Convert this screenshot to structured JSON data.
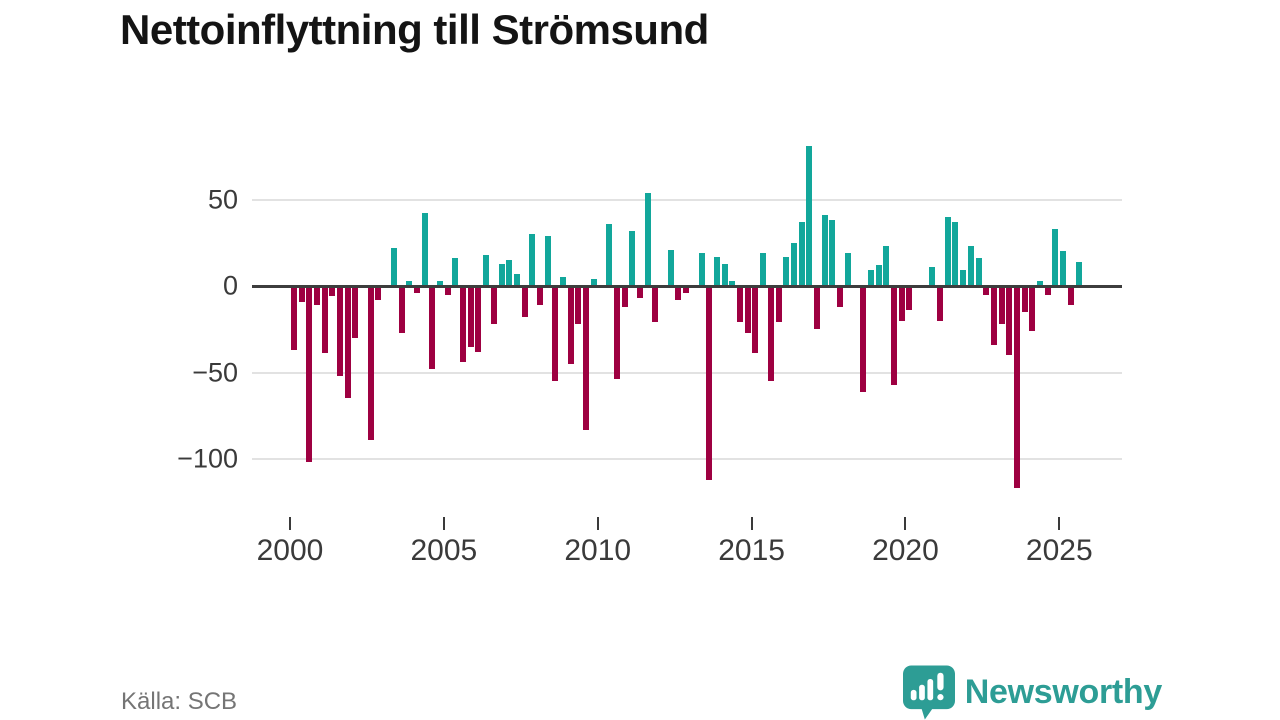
{
  "title": "Nettoinflyttning till Strömsund",
  "source": "Källa: SCB",
  "logo": {
    "text": "Newsworthy",
    "mark": "speech-bubble-bar-chart-icon",
    "color": "#2d9d95"
  },
  "chart_data": {
    "type": "bar",
    "title": "Nettoinflyttning till Strömsund",
    "xlabel": "",
    "ylabel": "",
    "frequency": "quarterly",
    "x_range": "2000Q1-2025Q3",
    "ylim": [
      -125,
      90
    ],
    "grid": true,
    "y_ticks": [
      50,
      0,
      -50,
      -100
    ],
    "y_tick_labels": [
      "50",
      "0",
      "−50",
      "−100"
    ],
    "x_tick_labels": [
      "2000",
      "2005",
      "2010",
      "2015",
      "2020",
      "2025"
    ],
    "colors": {
      "positive": "#12a79b",
      "negative": "#9e0041",
      "zero_line": "#3d3d3d",
      "gridline": "#e2e2e2"
    },
    "years": [
      {
        "year": 2000,
        "values": [
          -37,
          -9,
          -102,
          -11
        ]
      },
      {
        "year": 2001,
        "values": [
          -39,
          -6,
          -52,
          -65
        ]
      },
      {
        "year": 2002,
        "values": [
          -30,
          0,
          -89,
          -8
        ]
      },
      {
        "year": 2003,
        "values": [
          0,
          22,
          -27,
          3
        ]
      },
      {
        "year": 2004,
        "values": [
          -4,
          42,
          -48,
          3
        ]
      },
      {
        "year": 2005,
        "values": [
          -5,
          16,
          -44,
          -35
        ]
      },
      {
        "year": 2006,
        "values": [
          -38,
          18,
          -22,
          13
        ]
      },
      {
        "year": 2007,
        "values": [
          15,
          7,
          -18,
          30
        ]
      },
      {
        "year": 2008,
        "values": [
          -11,
          29,
          -55,
          5
        ]
      },
      {
        "year": 2009,
        "values": [
          -45,
          -22,
          -83,
          4
        ]
      },
      {
        "year": 2010,
        "values": [
          0,
          36,
          -54,
          -12
        ]
      },
      {
        "year": 2011,
        "values": [
          32,
          -7,
          54,
          -21
        ]
      },
      {
        "year": 2012,
        "values": [
          0,
          21,
          -8,
          -4
        ]
      },
      {
        "year": 2013,
        "values": [
          0,
          19,
          -112,
          17
        ]
      },
      {
        "year": 2014,
        "values": [
          13,
          3,
          -21,
          -27
        ]
      },
      {
        "year": 2015,
        "values": [
          -39,
          19,
          -55,
          -21
        ]
      },
      {
        "year": 2016,
        "values": [
          17,
          25,
          37,
          81
        ]
      },
      {
        "year": 2017,
        "values": [
          -25,
          41,
          38,
          -12
        ]
      },
      {
        "year": 2018,
        "values": [
          19,
          0,
          -61,
          9
        ]
      },
      {
        "year": 2019,
        "values": [
          12,
          23,
          -57,
          -20
        ]
      },
      {
        "year": 2020,
        "values": [
          -14,
          0,
          0,
          11
        ]
      },
      {
        "year": 2021,
        "values": [
          -20,
          40,
          37,
          9
        ]
      },
      {
        "year": 2022,
        "values": [
          23,
          16,
          -5,
          -34
        ]
      },
      {
        "year": 2023,
        "values": [
          -22,
          -40,
          -117,
          -15
        ]
      },
      {
        "year": 2024,
        "values": [
          -26,
          3,
          -5,
          33
        ]
      },
      {
        "year": 2025,
        "values": [
          20,
          -11,
          14
        ]
      }
    ]
  }
}
